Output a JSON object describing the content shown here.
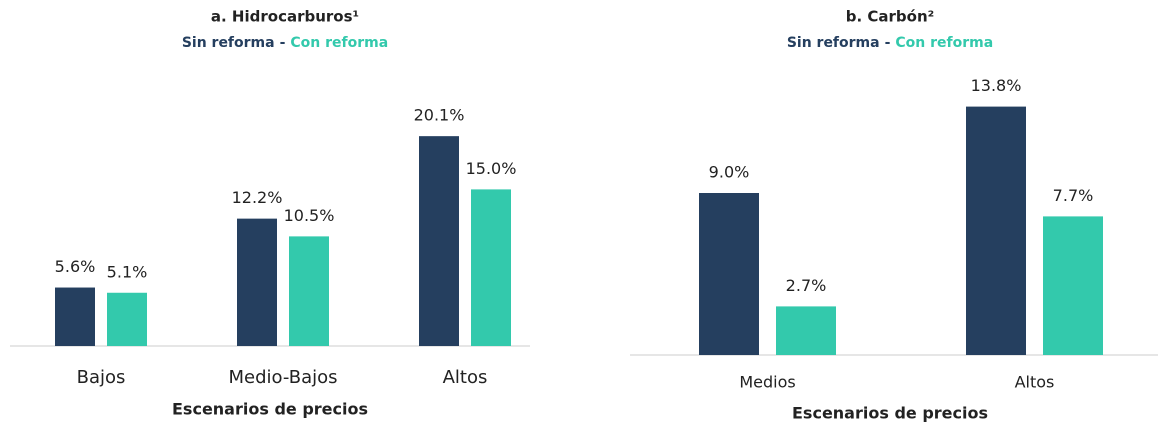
{
  "chart_data": [
    {
      "type": "bar",
      "title": "a. Hidrocarburos¹",
      "legend_separator": "-",
      "xlabel": "Escenarios de precios",
      "categories": [
        "Bajos",
        "Medio-Bajos",
        "Altos"
      ],
      "ylim": [
        0,
        25
      ],
      "series": [
        {
          "name": "Sin reforma",
          "color": "#253f5f",
          "values": [
            5.6,
            12.2,
            20.1
          ],
          "value_labels": [
            "5.6%",
            "12.2%",
            "20.1%"
          ]
        },
        {
          "name": "Con reforma",
          "color": "#33c9ac",
          "values": [
            5.1,
            10.5,
            15.0
          ],
          "value_labels": [
            "5.1%",
            "10.5%",
            "15.0%"
          ]
        }
      ]
    },
    {
      "type": "bar",
      "title": "b. Carbón²",
      "legend_separator": "-",
      "xlabel": "Escenarios de precios",
      "categories": [
        "Medios",
        "Altos"
      ],
      "ylim": [
        0,
        16
      ],
      "series": [
        {
          "name": "Sin reforma",
          "color": "#253f5f",
          "values": [
            9.0,
            13.8
          ],
          "value_labels": [
            "9.0%",
            "13.8%"
          ]
        },
        {
          "name": "Con reforma",
          "color": "#33c9ac",
          "values": [
            2.7,
            7.7
          ],
          "value_labels": [
            "2.7%",
            "7.7%"
          ]
        }
      ]
    }
  ]
}
